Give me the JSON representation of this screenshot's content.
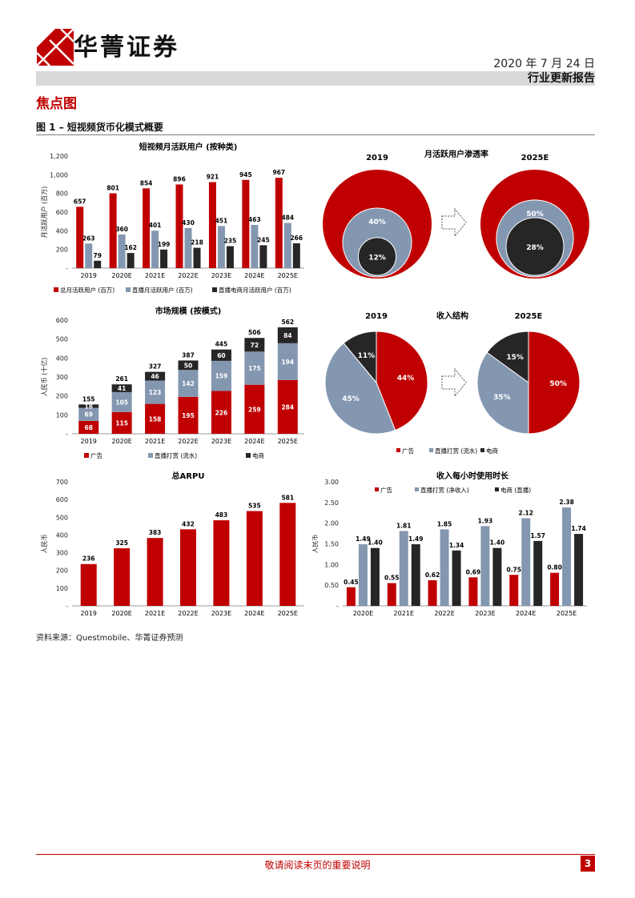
{
  "header": {
    "company": "华菁证券",
    "date": "2020 年 7 月 24 日",
    "report_type": "行业更新报告"
  },
  "section_title": "焦点图",
  "figure_title": "图 1 – 短视频货币化模式概要",
  "source": "资料来源：Questmobile、华菁证券预测",
  "footer": {
    "note": "敬请阅读末页的重要说明",
    "page": "3"
  },
  "colors": {
    "red": "#c00000",
    "gray": "#8497b0",
    "black": "#262626"
  },
  "chart_data": [
    {
      "id": "mau",
      "type": "bar",
      "title": "短视频月活跃用户 (按种类)",
      "ylabel": "月活跃用户 (百万)",
      "categories": [
        "2019",
        "2020E",
        "2021E",
        "2022E",
        "2023E",
        "2024E",
        "2025E"
      ],
      "ylim": [
        0,
        1200
      ],
      "yticks": [
        0,
        200,
        400,
        600,
        800,
        1000,
        1200
      ],
      "ytick_labels": [
        "-",
        "200",
        "400",
        "600",
        "800",
        "1,000",
        "1,200"
      ],
      "series": [
        {
          "name": "总月活跃用户 (百万)",
          "values": [
            657,
            801,
            854,
            896,
            921,
            945,
            967
          ],
          "labels": [
            "657",
            "801",
            "854",
            "896",
            "921",
            "945",
            "967"
          ]
        },
        {
          "name": "直播月活跃用户 (百万)",
          "values": [
            263,
            360,
            401,
            430,
            451,
            463,
            484
          ],
          "labels": [
            "263",
            "360",
            "401",
            "430",
            "451",
            "463",
            "484"
          ]
        },
        {
          "name": "直播电商月活跃用户 (百万)",
          "values": [
            79,
            162,
            199,
            218,
            235,
            245,
            266
          ],
          "labels": [
            "79",
            "162",
            "199",
            "218",
            "235",
            "245",
            "266"
          ]
        }
      ]
    },
    {
      "id": "penetration",
      "type": "nested-circles",
      "title": "月活跃用户渗透率",
      "panels": [
        {
          "label": "2019",
          "outer_pct": "40%",
          "inner_pct": "12%",
          "outer": 0.4,
          "inner": 0.12
        },
        {
          "label": "2025E",
          "outer_pct": "50%",
          "inner_pct": "28%",
          "outer": 0.5,
          "inner": 0.28
        }
      ]
    },
    {
      "id": "market",
      "type": "stacked-bar",
      "title": "市场规模 (按模式)",
      "ylabel": "人民币 (十亿)",
      "categories": [
        "2019",
        "2020E",
        "2021E",
        "2022E",
        "2023E",
        "2024E",
        "2025E"
      ],
      "ylim": [
        0,
        600
      ],
      "yticks": [
        0,
        100,
        200,
        300,
        400,
        500,
        600
      ],
      "ytick_labels": [
        "-",
        "100",
        "200",
        "300",
        "400",
        "500",
        "600"
      ],
      "totals": [
        155,
        261,
        327,
        387,
        445,
        506,
        562
      ],
      "total_labels": [
        "155",
        "261",
        "327",
        "387",
        "445",
        "506",
        "562"
      ],
      "series": [
        {
          "name": "广告",
          "values": [
            68,
            115,
            158,
            195,
            226,
            259,
            284
          ],
          "labels": [
            "68",
            "115",
            "158",
            "195",
            "226",
            "259",
            "284"
          ]
        },
        {
          "name": "直播打赏 (流水)",
          "values": [
            69,
            105,
            123,
            142,
            159,
            175,
            194
          ],
          "labels": [
            "69",
            "105",
            "123",
            "142",
            "159",
            "175",
            "194"
          ]
        },
        {
          "name": "电商",
          "values": [
            18,
            41,
            46,
            50,
            60,
            72,
            84
          ],
          "labels": [
            "18",
            "41",
            "46",
            "50",
            "60",
            "72",
            "84"
          ]
        }
      ]
    },
    {
      "id": "revenue-mix",
      "type": "pie",
      "title": "收入结构",
      "legend": [
        "广告",
        "直播打赏 (流水)",
        "电商"
      ],
      "panels": [
        {
          "label": "2019",
          "values": [
            0.44,
            0.45,
            0.11
          ],
          "labels": [
            "44%",
            "45%",
            "11%"
          ]
        },
        {
          "label": "2025E",
          "values": [
            0.5,
            0.35,
            0.15
          ],
          "labels": [
            "50%",
            "35%",
            "15%"
          ]
        }
      ]
    },
    {
      "id": "arpu",
      "type": "bar",
      "title": "总ARPU",
      "ylabel": "人民币",
      "categories": [
        "2019",
        "2020E",
        "2021E",
        "2022E",
        "2023E",
        "2024E",
        "2025E"
      ],
      "ylim": [
        0,
        700
      ],
      "yticks": [
        0,
        100,
        200,
        300,
        400,
        500,
        600,
        700
      ],
      "ytick_labels": [
        "-",
        "100",
        "200",
        "300",
        "400",
        "500",
        "600",
        "700"
      ],
      "series": [
        {
          "name": "总ARPU",
          "values": [
            236,
            325,
            383,
            432,
            483,
            535,
            581
          ],
          "labels": [
            "236",
            "325",
            "383",
            "432",
            "483",
            "535",
            "581"
          ]
        }
      ]
    },
    {
      "id": "hourly",
      "type": "bar",
      "title": "收入每小时使用时长",
      "ylabel": "人民币",
      "categories": [
        "2020E",
        "2021E",
        "2022E",
        "2023E",
        "2024E",
        "2025E"
      ],
      "ylim": [
        0,
        3
      ],
      "yticks": [
        0,
        0.5,
        1,
        1.5,
        2,
        2.5,
        3
      ],
      "ytick_labels": [
        "-",
        "0.50",
        "1.00",
        "1.50",
        "2.00",
        "2.50",
        "3.00"
      ],
      "series": [
        {
          "name": "广告",
          "values": [
            0.45,
            0.55,
            0.62,
            0.69,
            0.75,
            0.8
          ],
          "labels": [
            "0.45",
            "0.55",
            "0.62",
            "0.69",
            "0.75",
            "0.80"
          ]
        },
        {
          "name": "直播打赏 (净收入)",
          "values": [
            1.49,
            1.81,
            1.85,
            1.93,
            2.12,
            2.38
          ],
          "labels": [
            "1.49",
            "1.81",
            "1.85",
            "1.93",
            "2.12",
            "2.38"
          ]
        },
        {
          "name": "电商 (直播)",
          "values": [
            1.4,
            1.49,
            1.34,
            1.4,
            1.57,
            1.74
          ],
          "labels": [
            "1.40",
            "1.49",
            "1.34",
            "1.40",
            "1.57",
            "1.74"
          ]
        }
      ]
    }
  ]
}
